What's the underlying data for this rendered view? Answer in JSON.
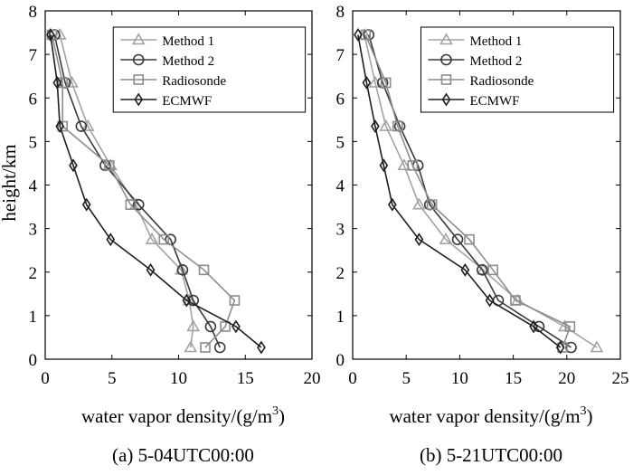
{
  "figure": {
    "ylabel": "height/km",
    "xlabel_main": "water vapor density/(g/m",
    "xlabel_sup": "3",
    "xlabel_close": ")"
  },
  "chart_data": [
    {
      "type": "line",
      "caption": "(a) 5-04UTC00:00",
      "xlim": [
        0,
        20
      ],
      "ylim": [
        0,
        8
      ],
      "xticks": [
        0,
        5,
        10,
        15,
        20
      ],
      "yticks": [
        0,
        1,
        2,
        3,
        4,
        5,
        6,
        7,
        8
      ],
      "grid": false,
      "legend_position": "top-right",
      "series": [
        {
          "name": "Method 1",
          "marker": "triangle",
          "color": "#a3a3a3",
          "points": [
            [
              1.1,
              7.45
            ],
            [
              2.0,
              6.35
            ],
            [
              3.2,
              5.35
            ],
            [
              4.9,
              4.45
            ],
            [
              6.8,
              3.55
            ],
            [
              8.0,
              2.75
            ],
            [
              10.2,
              2.05
            ],
            [
              10.8,
              1.35
            ],
            [
              11.1,
              0.75
            ],
            [
              10.9,
              0.27
            ]
          ]
        },
        {
          "name": "Method 2",
          "marker": "circle",
          "color": "#3a3a3a",
          "points": [
            [
              0.7,
              7.45
            ],
            [
              1.5,
              6.35
            ],
            [
              2.7,
              5.35
            ],
            [
              4.5,
              4.45
            ],
            [
              7.0,
              3.55
            ],
            [
              9.4,
              2.75
            ],
            [
              10.3,
              2.05
            ],
            [
              11.1,
              1.35
            ],
            [
              12.4,
              0.75
            ],
            [
              13.1,
              0.27
            ]
          ]
        },
        {
          "name": "Radiosonde",
          "marker": "square",
          "color": "#8c8c8c",
          "points": [
            [
              0.5,
              7.45
            ],
            [
              1.3,
              6.35
            ],
            [
              1.3,
              5.35
            ],
            [
              4.8,
              4.45
            ],
            [
              6.4,
              3.55
            ],
            [
              8.9,
              2.75
            ],
            [
              11.9,
              2.05
            ],
            [
              14.2,
              1.35
            ],
            [
              13.5,
              0.75
            ],
            [
              12.0,
              0.27
            ]
          ]
        },
        {
          "name": "ECMWF",
          "marker": "diamond",
          "color": "#1e1e1e",
          "points": [
            [
              0.4,
              7.45
            ],
            [
              0.9,
              6.35
            ],
            [
              1.1,
              5.35
            ],
            [
              2.1,
              4.45
            ],
            [
              3.1,
              3.55
            ],
            [
              4.9,
              2.75
            ],
            [
              7.9,
              2.05
            ],
            [
              10.6,
              1.35
            ],
            [
              14.3,
              0.75
            ],
            [
              16.2,
              0.27
            ]
          ]
        }
      ]
    },
    {
      "type": "line",
      "caption": "(b) 5-21UTC00:00",
      "xlim": [
        0,
        25
      ],
      "ylim": [
        0,
        8
      ],
      "xticks": [
        0,
        5,
        10,
        15,
        20,
        25
      ],
      "yticks": [
        0,
        1,
        2,
        3,
        4,
        5,
        6,
        7,
        8
      ],
      "grid": false,
      "legend_position": "top-right",
      "series": [
        {
          "name": "Method 1",
          "marker": "triangle",
          "color": "#a3a3a3",
          "points": [
            [
              1.1,
              7.45
            ],
            [
              2.1,
              6.35
            ],
            [
              3.1,
              5.35
            ],
            [
              4.8,
              4.45
            ],
            [
              6.2,
              3.55
            ],
            [
              8.7,
              2.75
            ],
            [
              12.2,
              2.05
            ],
            [
              15.4,
              1.35
            ],
            [
              19.8,
              0.75
            ],
            [
              22.8,
              0.27
            ]
          ]
        },
        {
          "name": "Method 2",
          "marker": "circle",
          "color": "#3a3a3a",
          "points": [
            [
              1.5,
              7.45
            ],
            [
              2.8,
              6.35
            ],
            [
              4.4,
              5.35
            ],
            [
              6.1,
              4.45
            ],
            [
              7.2,
              3.55
            ],
            [
              9.8,
              2.75
            ],
            [
              12.1,
              2.05
            ],
            [
              13.6,
              1.35
            ],
            [
              17.4,
              0.75
            ],
            [
              20.4,
              0.27
            ]
          ]
        },
        {
          "name": "Radiosonde",
          "marker": "square",
          "color": "#8c8c8c",
          "points": [
            [
              1.2,
              7.45
            ],
            [
              3.1,
              6.35
            ],
            [
              4.2,
              5.35
            ],
            [
              5.6,
              4.45
            ],
            [
              7.4,
              3.55
            ],
            [
              10.9,
              2.75
            ],
            [
              13.1,
              2.05
            ],
            [
              15.2,
              1.35
            ],
            [
              20.3,
              0.75
            ],
            [
              19.6,
              0.27
            ]
          ]
        },
        {
          "name": "ECMWF",
          "marker": "diamond",
          "color": "#1e1e1e",
          "points": [
            [
              0.5,
              7.45
            ],
            [
              1.3,
              6.35
            ],
            [
              2.1,
              5.35
            ],
            [
              2.9,
              4.45
            ],
            [
              3.7,
              3.55
            ],
            [
              6.2,
              2.75
            ],
            [
              10.5,
              2.05
            ],
            [
              12.8,
              1.35
            ],
            [
              16.9,
              0.75
            ],
            [
              19.4,
              0.27
            ]
          ]
        }
      ]
    }
  ]
}
